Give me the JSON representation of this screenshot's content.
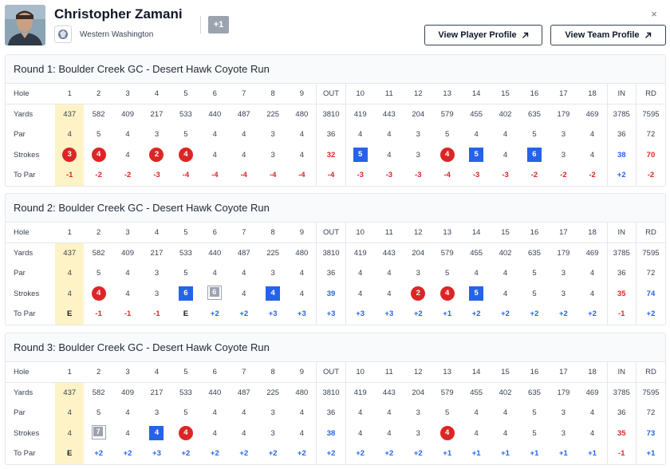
{
  "player": {
    "name": "Christopher Zamani",
    "team": "Western Washington",
    "extra_badge": "+1"
  },
  "buttons": {
    "player_profile": "View Player Profile",
    "team_profile": "View Team Profile",
    "arrow_icon": "arrow-up-right-icon",
    "close": "×"
  },
  "row_labels": [
    "Hole",
    "Yards",
    "Par",
    "Strokes",
    "To Par"
  ],
  "holes": [
    "1",
    "2",
    "3",
    "4",
    "5",
    "6",
    "7",
    "8",
    "9",
    "OUT",
    "10",
    "11",
    "12",
    "13",
    "14",
    "15",
    "16",
    "17",
    "18",
    "IN",
    "RD"
  ],
  "yards": [
    "437",
    "582",
    "409",
    "217",
    "533",
    "440",
    "487",
    "225",
    "480",
    "3810",
    "419",
    "443",
    "204",
    "579",
    "455",
    "402",
    "635",
    "179",
    "469",
    "3785",
    "7595"
  ],
  "par": [
    "4",
    "5",
    "4",
    "3",
    "5",
    "4",
    "4",
    "3",
    "4",
    "36",
    "4",
    "4",
    "3",
    "5",
    "4",
    "4",
    "5",
    "3",
    "4",
    "36",
    "72"
  ],
  "colors": {
    "birdie": "#dc2626",
    "bogey": "#2563eb",
    "highlight": "#fef3c7"
  },
  "rounds": [
    {
      "title": "Round 1: Boulder Creek GC - Desert Hawk Coyote Run",
      "strokes": [
        {
          "v": "3",
          "m": "circle"
        },
        {
          "v": "4",
          "m": "circle"
        },
        {
          "v": "4",
          "m": ""
        },
        {
          "v": "2",
          "m": "circle"
        },
        {
          "v": "4",
          "m": "circle"
        },
        {
          "v": "4",
          "m": ""
        },
        {
          "v": "4",
          "m": ""
        },
        {
          "v": "3",
          "m": ""
        },
        {
          "v": "4",
          "m": ""
        },
        {
          "v": "32",
          "m": "red"
        },
        {
          "v": "5",
          "m": "square"
        },
        {
          "v": "4",
          "m": ""
        },
        {
          "v": "3",
          "m": ""
        },
        {
          "v": "4",
          "m": "circle"
        },
        {
          "v": "5",
          "m": "square"
        },
        {
          "v": "4",
          "m": ""
        },
        {
          "v": "6",
          "m": "square"
        },
        {
          "v": "3",
          "m": ""
        },
        {
          "v": "4",
          "m": ""
        },
        {
          "v": "38",
          "m": "blue"
        },
        {
          "v": "70",
          "m": "red"
        }
      ],
      "topar": [
        "-1",
        "-2",
        "-2",
        "-3",
        "-4",
        "-4",
        "-4",
        "-4",
        "-4",
        "-4",
        "-3",
        "-3",
        "-3",
        "-4",
        "-3",
        "-3",
        "-2",
        "-2",
        "-2",
        "+2",
        "-2"
      ]
    },
    {
      "title": "Round 2: Boulder Creek GC - Desert Hawk Coyote Run",
      "strokes": [
        {
          "v": "4",
          "m": ""
        },
        {
          "v": "4",
          "m": "circle"
        },
        {
          "v": "4",
          "m": ""
        },
        {
          "v": "3",
          "m": ""
        },
        {
          "v": "6",
          "m": "square"
        },
        {
          "v": "6",
          "m": "double"
        },
        {
          "v": "4",
          "m": ""
        },
        {
          "v": "4",
          "m": "square"
        },
        {
          "v": "4",
          "m": ""
        },
        {
          "v": "39",
          "m": "blue"
        },
        {
          "v": "4",
          "m": ""
        },
        {
          "v": "4",
          "m": ""
        },
        {
          "v": "2",
          "m": "circle"
        },
        {
          "v": "4",
          "m": "circle"
        },
        {
          "v": "5",
          "m": "square"
        },
        {
          "v": "4",
          "m": ""
        },
        {
          "v": "5",
          "m": ""
        },
        {
          "v": "3",
          "m": ""
        },
        {
          "v": "4",
          "m": ""
        },
        {
          "v": "35",
          "m": "red"
        },
        {
          "v": "74",
          "m": "blue"
        }
      ],
      "topar": [
        "E",
        "-1",
        "-1",
        "-1",
        "E",
        "+2",
        "+2",
        "+3",
        "+3",
        "+3",
        "+3",
        "+3",
        "+2",
        "+1",
        "+2",
        "+2",
        "+2",
        "+2",
        "+2",
        "-1",
        "+2"
      ]
    },
    {
      "title": "Round 3: Boulder Creek GC - Desert Hawk Coyote Run",
      "strokes": [
        {
          "v": "4",
          "m": ""
        },
        {
          "v": "7",
          "m": "double"
        },
        {
          "v": "4",
          "m": ""
        },
        {
          "v": "4",
          "m": "square"
        },
        {
          "v": "4",
          "m": "circle"
        },
        {
          "v": "4",
          "m": ""
        },
        {
          "v": "4",
          "m": ""
        },
        {
          "v": "3",
          "m": ""
        },
        {
          "v": "4",
          "m": ""
        },
        {
          "v": "38",
          "m": "blue"
        },
        {
          "v": "4",
          "m": ""
        },
        {
          "v": "4",
          "m": ""
        },
        {
          "v": "3",
          "m": ""
        },
        {
          "v": "4",
          "m": "circle"
        },
        {
          "v": "4",
          "m": ""
        },
        {
          "v": "4",
          "m": ""
        },
        {
          "v": "5",
          "m": ""
        },
        {
          "v": "3",
          "m": ""
        },
        {
          "v": "4",
          "m": ""
        },
        {
          "v": "35",
          "m": "red"
        },
        {
          "v": "73",
          "m": "blue"
        }
      ],
      "topar": [
        "E",
        "+2",
        "+2",
        "+3",
        "+2",
        "+2",
        "+2",
        "+2",
        "+2",
        "+2",
        "+2",
        "+2",
        "+2",
        "+1",
        "+1",
        "+1",
        "+1",
        "+1",
        "+1",
        "-1",
        "+1"
      ]
    }
  ]
}
